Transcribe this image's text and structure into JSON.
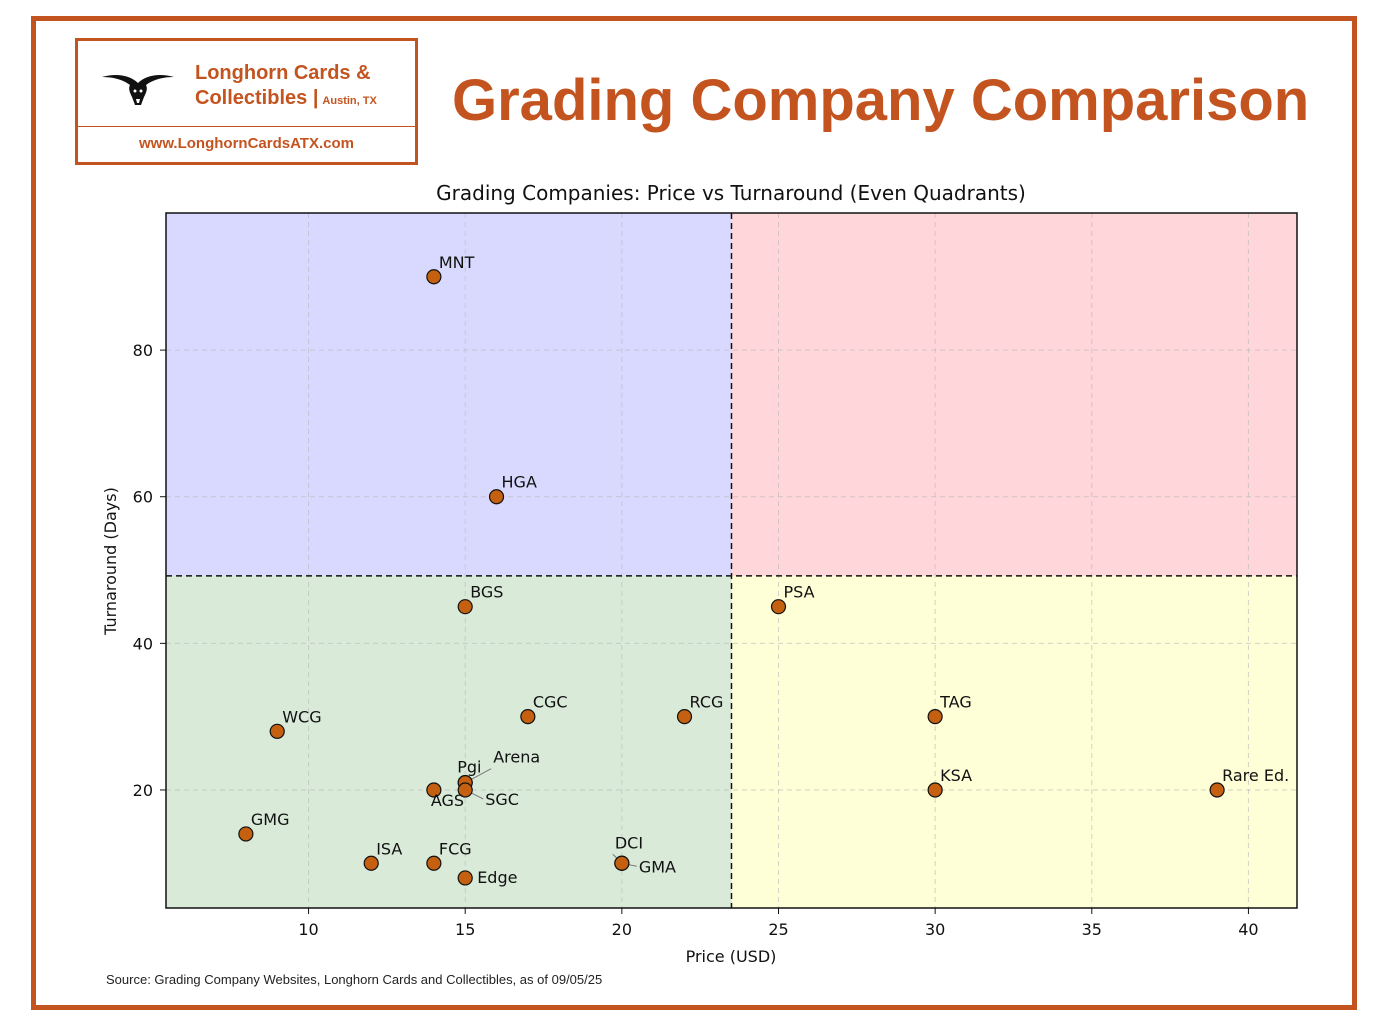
{
  "logo": {
    "name_line1": "Longhorn Cards &",
    "name_line2": "Collectibles |",
    "city": "Austin, TX",
    "url": "www.LonghornCardsATX.com",
    "icon": "longhorn-steer-icon"
  },
  "headline": "Grading Company Comparison",
  "source": "Source:  Grading Company Websites, Longhorn Cards and Collectibles, as of 09/05/25",
  "colors": {
    "brand": "#c4541f",
    "marker": "#c4600f",
    "quadrant_top_left": "#d9d9ff",
    "quadrant_top_right": "#ffd6d9",
    "quadrant_bottom_left": "#d9ead9",
    "quadrant_bottom_right": "#fefed7"
  },
  "chart_data": {
    "type": "scatter",
    "title": "Grading Companies: Price vs Turnaround (Even Quadrants)",
    "xlabel": "Price (USD)",
    "ylabel": "Turnaround (Days)",
    "xlim": [
      5.45,
      41.55
    ],
    "ylim": [
      3.9,
      98.7
    ],
    "xticks": [
      10,
      15,
      20,
      25,
      30,
      35,
      40
    ],
    "yticks": [
      20,
      40,
      60,
      80
    ],
    "quadrant_split": {
      "x": 23.5,
      "y": 49.2
    },
    "grid": true,
    "points": [
      {
        "label": "MNT",
        "x": 14,
        "y": 90
      },
      {
        "label": "HGA",
        "x": 16,
        "y": 60
      },
      {
        "label": "BGS",
        "x": 15,
        "y": 45
      },
      {
        "label": "PSA",
        "x": 25,
        "y": 45
      },
      {
        "label": "WCG",
        "x": 9,
        "y": 28
      },
      {
        "label": "CGC",
        "x": 17,
        "y": 30
      },
      {
        "label": "RCG",
        "x": 22,
        "y": 30
      },
      {
        "label": "TAG",
        "x": 30,
        "y": 30
      },
      {
        "label": "Arena",
        "x": 15,
        "y": 21
      },
      {
        "label": "Pgi",
        "x": 15,
        "y": 21
      },
      {
        "label": "AGS",
        "x": 14,
        "y": 20
      },
      {
        "label": "SGC",
        "x": 15,
        "y": 20
      },
      {
        "label": "KSA",
        "x": 30,
        "y": 20
      },
      {
        "label": "Rare Ed.",
        "x": 39,
        "y": 20
      },
      {
        "label": "GMG",
        "x": 8,
        "y": 14
      },
      {
        "label": "ISA",
        "x": 12,
        "y": 10
      },
      {
        "label": "FCG",
        "x": 14,
        "y": 10
      },
      {
        "label": "DCI",
        "x": 20,
        "y": 10
      },
      {
        "label": "GMA",
        "x": 20,
        "y": 10
      },
      {
        "label": "Edge",
        "x": 15,
        "y": 8
      }
    ]
  }
}
